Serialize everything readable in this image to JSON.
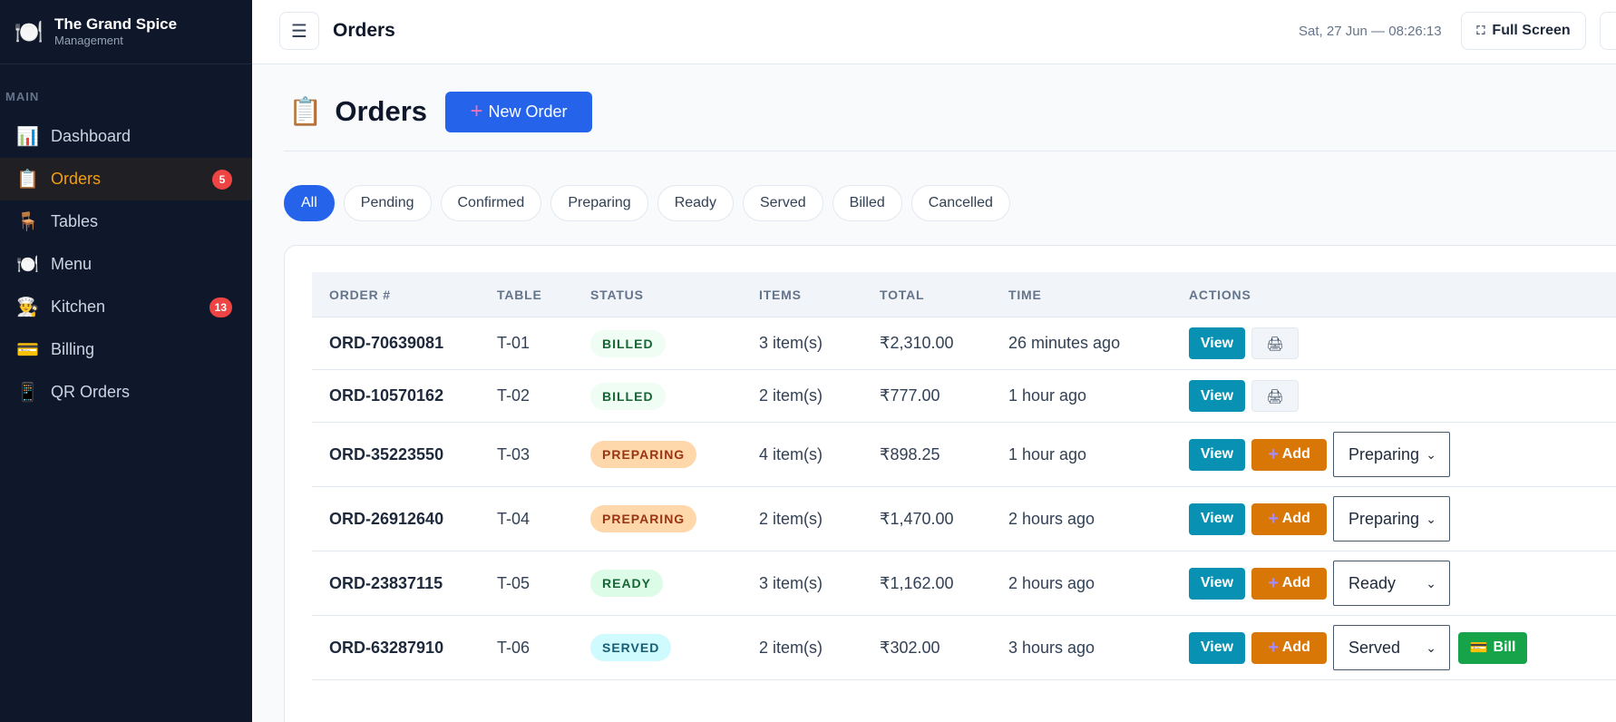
{
  "brand": {
    "name": "The Grand Spice",
    "subtitle": "Management",
    "logo_icon": "plate-icon"
  },
  "sidebar": {
    "section": "MAIN",
    "items": [
      {
        "label": "Dashboard",
        "icon": "📊",
        "badge": ""
      },
      {
        "label": "Orders",
        "icon": "📋",
        "badge": "5",
        "active": true
      },
      {
        "label": "Tables",
        "icon": "🪑",
        "badge": ""
      },
      {
        "label": "Menu",
        "icon": "🍽️",
        "badge": ""
      },
      {
        "label": "Kitchen",
        "icon": "👨‍🍳",
        "badge": "13"
      },
      {
        "label": "Billing",
        "icon": "💳",
        "badge": ""
      },
      {
        "label": "QR Orders",
        "icon": "📱",
        "badge": ""
      }
    ]
  },
  "topbar": {
    "menu_icon": "☰",
    "title": "Orders",
    "clock": "Sat, 27 Jun — 08:26:13",
    "fullscreen_icon": "⛶",
    "fullscreen_label": "Full Screen"
  },
  "page": {
    "icon": "📋",
    "title": "Orders",
    "new_order_icon": "+",
    "new_order_label": "New Order"
  },
  "filters": [
    "All",
    "Pending",
    "Confirmed",
    "Preparing",
    "Ready",
    "Served",
    "Billed",
    "Cancelled"
  ],
  "table": {
    "headers": [
      "ORDER #",
      "TABLE",
      "STATUS",
      "ITEMS",
      "TOTAL",
      "TIME",
      "ACTIONS"
    ],
    "view_label": "View",
    "add_label": "Add",
    "add_icon": "+",
    "print_icon": "🖨",
    "bill_icon": "💳",
    "bill_label": "Bill",
    "select_chevron": "⌄",
    "rows": [
      {
        "id": "ORD-70639081",
        "table": "T-01",
        "status": "BILLED",
        "items": "3 item(s)",
        "total": "₹2,310.00",
        "time": "26 minutes ago",
        "selected": ""
      },
      {
        "id": "ORD-10570162",
        "table": "T-02",
        "status": "BILLED",
        "items": "2 item(s)",
        "total": "₹777.00",
        "time": "1 hour ago",
        "selected": ""
      },
      {
        "id": "ORD-35223550",
        "table": "T-03",
        "status": "PREPARING",
        "items": "4 item(s)",
        "total": "₹898.25",
        "time": "1 hour ago",
        "selected": "Preparing"
      },
      {
        "id": "ORD-26912640",
        "table": "T-04",
        "status": "PREPARING",
        "items": "2 item(s)",
        "total": "₹1,470.00",
        "time": "2 hours ago",
        "selected": "Preparing"
      },
      {
        "id": "ORD-23837115",
        "table": "T-05",
        "status": "READY",
        "items": "3 item(s)",
        "total": "₹1,162.00",
        "time": "2 hours ago",
        "selected": "Ready"
      },
      {
        "id": "ORD-63287910",
        "table": "T-06",
        "status": "SERVED",
        "items": "2 item(s)",
        "total": "₹302.00",
        "time": "3 hours ago",
        "selected": "Served"
      }
    ]
  },
  "colors": {
    "sidebar_bg": "#0f172a",
    "accent": "#2563eb",
    "active_nav": "#f59e0b",
    "view_btn": "#0891b2",
    "add_btn": "#d97706",
    "bill_btn": "#16a34a"
  }
}
